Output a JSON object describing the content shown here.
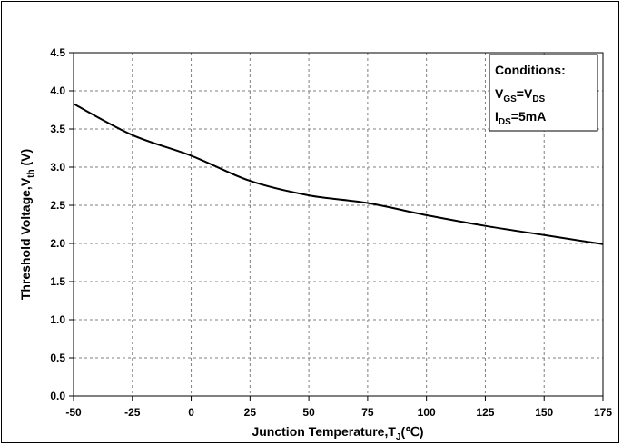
{
  "chart_data": {
    "type": "line",
    "xlabel": "Junction Temperature,T",
    "xlabel_sub": "J",
    "xlabel_unit": "(℃)",
    "ylabel": "Threshold Voltage,V",
    "ylabel_sub": "th",
    "ylabel_unit": " (V)",
    "xlim": [
      -50,
      175
    ],
    "ylim": [
      0.0,
      4.5
    ],
    "x_ticks": [
      "-50",
      "-25",
      "0",
      "25",
      "50",
      "75",
      "100",
      "125",
      "150",
      "175"
    ],
    "y_ticks": [
      "0.0",
      "0.5",
      "1.0",
      "1.5",
      "2.0",
      "2.5",
      "3.0",
      "3.5",
      "4.0",
      "4.5"
    ],
    "grid": true,
    "legend_placement": "top-right",
    "series": [
      {
        "x": [
          -50,
          -25,
          0,
          25,
          50,
          75,
          100,
          125,
          150,
          175
        ],
        "y": [
          3.83,
          3.42,
          3.15,
          2.82,
          2.63,
          2.53,
          2.37,
          2.23,
          2.11,
          1.99
        ]
      }
    ],
    "annotation": {
      "title": "Conditions:",
      "line1": {
        "a": "V",
        "a_sub": "GS",
        "eq": "=V",
        "b_sub": "DS"
      },
      "line2": {
        "a": "I",
        "a_sub": "DS",
        "rest": "=5mA"
      }
    },
    "colors": {
      "line": "#000000",
      "grid": "#7f7f7f",
      "axis": "#000000"
    }
  }
}
